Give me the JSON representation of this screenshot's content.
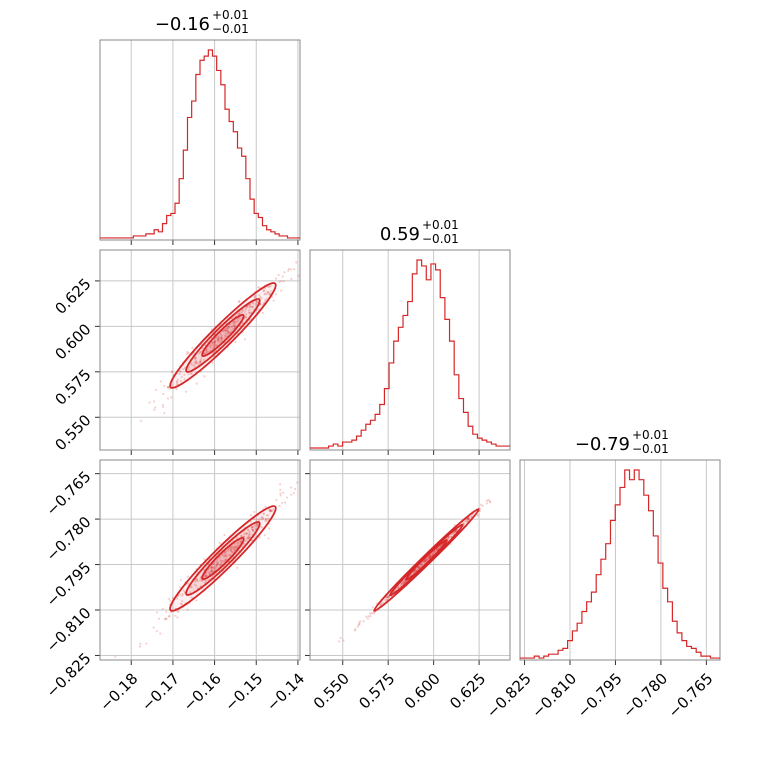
{
  "chart_data": {
    "type": "corner",
    "color": "#d62728",
    "grid": true,
    "parameters": [
      {
        "range": [
          -0.1875,
          -0.1395
        ],
        "ticks": [
          -0.18,
          -0.17,
          -0.16,
          -0.15,
          -0.14
        ]
      },
      {
        "range": [
          0.532,
          0.642
        ],
        "ticks": [
          0.55,
          0.575,
          0.6,
          0.625
        ]
      },
      {
        "range": [
          -0.8265,
          -0.7605
        ],
        "ticks": [
          -0.825,
          -0.81,
          -0.795,
          -0.78,
          -0.765
        ]
      }
    ],
    "tick_labels": {
      "p0": [
        "−0.18",
        "−0.17",
        "−0.16",
        "−0.15",
        "−0.14"
      ],
      "p1": [
        "0.550",
        "0.575",
        "0.600",
        "0.625"
      ],
      "p2": [
        "−0.825",
        "−0.810",
        "−0.795",
        "−0.780",
        "−0.765"
      ]
    },
    "titles": [
      {
        "main": "−0.16",
        "sup": "+0.01",
        "sub": "−0.01"
      },
      {
        "main": "0.59",
        "sup": "+0.01",
        "sub": "−0.01"
      },
      {
        "main": "−0.79",
        "sup": "+0.01",
        "sub": "−0.01"
      }
    ],
    "histograms": [
      {
        "edges_range": [
          -0.1875,
          -0.1395
        ],
        "counts": [
          1,
          1,
          1,
          1,
          1,
          1,
          1,
          1,
          2,
          2,
          2,
          3,
          3,
          5,
          4,
          8,
          12,
          13,
          18,
          30,
          44,
          60,
          68,
          81,
          88,
          90,
          93,
          90,
          83,
          76,
          64,
          58,
          53,
          45,
          41,
          30,
          20,
          13,
          11,
          7,
          5,
          4,
          3,
          2,
          2,
          1,
          1,
          1
        ]
      },
      {
        "edges_range": [
          0.532,
          0.642
        ],
        "counts": [
          1,
          1,
          1,
          1,
          2,
          3,
          2,
          4,
          4,
          5,
          7,
          10,
          13,
          15,
          18,
          23,
          31,
          44,
          55,
          62,
          68,
          75,
          89,
          96,
          93,
          86,
          94,
          91,
          77,
          66,
          55,
          38,
          26,
          19,
          12,
          8,
          6,
          5,
          4,
          3,
          2,
          2,
          2
        ]
      },
      {
        "edges_range": [
          -0.8265,
          -0.7605
        ],
        "counts": [
          1,
          1,
          1,
          2,
          1,
          2,
          3,
          3,
          5,
          6,
          10,
          15,
          19,
          25,
          30,
          35,
          44,
          52,
          60,
          72,
          80,
          89,
          98,
          93,
          98,
          93,
          85,
          77,
          64,
          50,
          37,
          30,
          20,
          14,
          10,
          7,
          6,
          4,
          2,
          2,
          1,
          1
        ]
      }
    ],
    "pairs": [
      {
        "x": 0,
        "y": 1,
        "center": [
          -0.158,
          0.595
        ],
        "sd": [
          0.0055,
          0.0125
        ],
        "corr": 0.97
      },
      {
        "x": 0,
        "y": 2,
        "center": [
          -0.158,
          -0.793
        ],
        "sd": [
          0.0055,
          0.0075
        ],
        "corr": 0.97
      },
      {
        "x": 1,
        "y": 2,
        "center": [
          0.596,
          -0.7935
        ],
        "sd": [
          0.0125,
          0.0073
        ],
        "corr": 0.997
      }
    ]
  }
}
